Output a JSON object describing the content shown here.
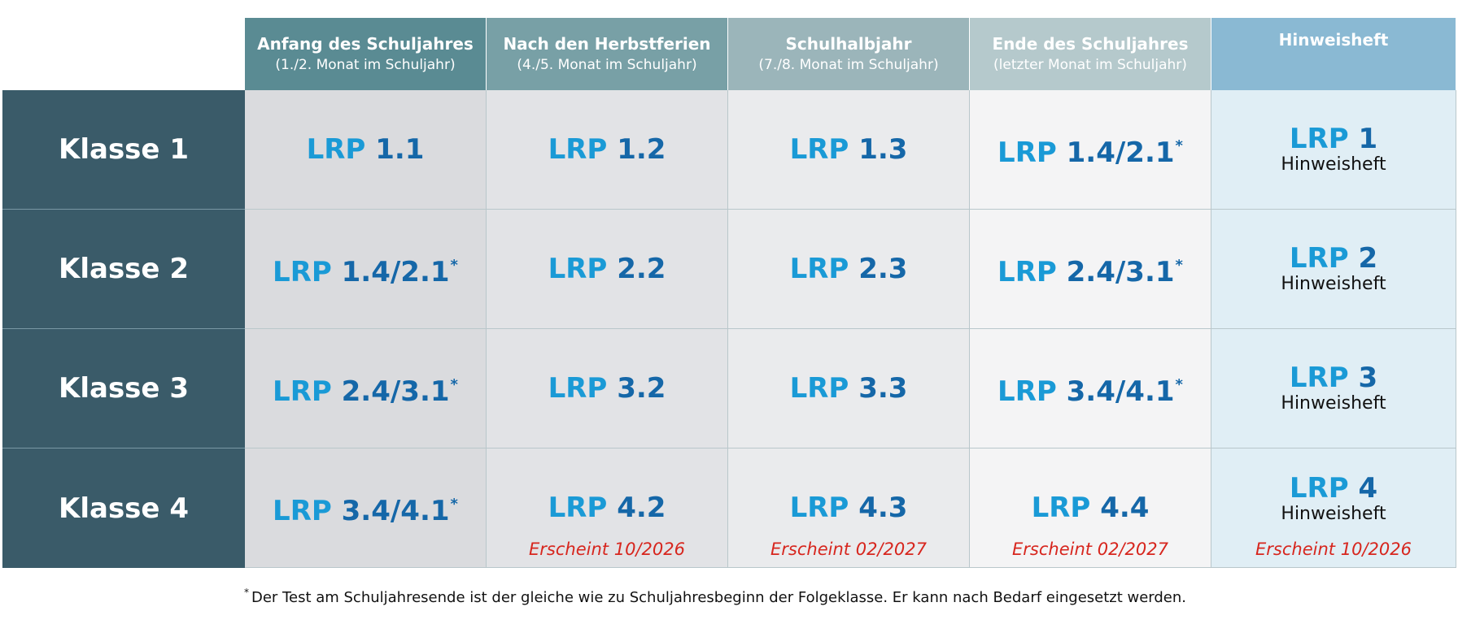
{
  "headers": [
    {
      "title": "Anfang des Schuljahres",
      "subtitle": "(1./2. Monat im Schuljahr)"
    },
    {
      "title": "Nach den Herbstferien",
      "subtitle": "(4./5. Monat im Schuljahr)"
    },
    {
      "title": "Schulhalbjahr",
      "subtitle": "(7./8. Monat im Schuljahr)"
    },
    {
      "title": "Ende des Schuljahres",
      "subtitle": "(letzter Monat im Schuljahr)"
    },
    {
      "title": "Hinweisheft",
      "subtitle": ""
    }
  ],
  "rows": [
    {
      "label": "Klasse 1",
      "cells": [
        {
          "prefix": "LRP",
          "num": "1.1",
          "star": ""
        },
        {
          "prefix": "LRP",
          "num": "1.2",
          "star": ""
        },
        {
          "prefix": "LRP",
          "num": "1.3",
          "star": ""
        },
        {
          "prefix": "LRP",
          "num": "1.4/2.1",
          "star": "*"
        },
        {
          "prefix": "LRP",
          "num": "1",
          "star": "",
          "sub": "Hinweisheft"
        }
      ]
    },
    {
      "label": "Klasse 2",
      "cells": [
        {
          "prefix": "LRP",
          "num": "1.4/2.1",
          "star": "*"
        },
        {
          "prefix": "LRP",
          "num": "2.2",
          "star": ""
        },
        {
          "prefix": "LRP",
          "num": "2.3",
          "star": ""
        },
        {
          "prefix": "LRP",
          "num": "2.4/3.1",
          "star": "*"
        },
        {
          "prefix": "LRP",
          "num": "2",
          "star": "",
          "sub": "Hinweisheft"
        }
      ]
    },
    {
      "label": "Klasse 3",
      "cells": [
        {
          "prefix": "LRP",
          "num": "2.4/3.1",
          "star": "*"
        },
        {
          "prefix": "LRP",
          "num": "3.2",
          "star": ""
        },
        {
          "prefix": "LRP",
          "num": "3.3",
          "star": ""
        },
        {
          "prefix": "LRP",
          "num": "3.4/4.1",
          "star": "*"
        },
        {
          "prefix": "LRP",
          "num": "3",
          "star": "",
          "sub": "Hinweisheft"
        }
      ]
    },
    {
      "label": "Klasse 4",
      "cells": [
        {
          "prefix": "LRP",
          "num": "3.4/4.1",
          "star": "*"
        },
        {
          "prefix": "LRP",
          "num": "4.2",
          "star": "",
          "note": "Erscheint 10/2026"
        },
        {
          "prefix": "LRP",
          "num": "4.3",
          "star": "",
          "note": "Erscheint 02/2027"
        },
        {
          "prefix": "LRP",
          "num": "4.4",
          "star": "",
          "note": "Erscheint 02/2027"
        },
        {
          "prefix": "LRP",
          "num": "4",
          "star": "",
          "sub": "Hinweisheft",
          "note": "Erscheint 10/2026"
        }
      ]
    }
  ],
  "footnote": {
    "marker": "*",
    "text": "Der Test am Schuljahresende ist der gleiche wie zu Schuljahresbeginn der Folgeklasse. Er kann nach Bedarf eingesetzt werden."
  },
  "colors": {
    "klasse_bg": "#3a5b69",
    "lrp_prefix": "#1a9ad6",
    "lrp_number": "#1567a8",
    "note_red": "#d7261e"
  }
}
